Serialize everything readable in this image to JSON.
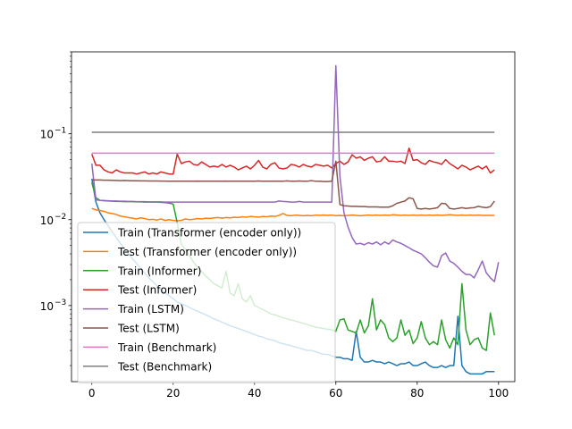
{
  "chart_data": {
    "type": "line",
    "title": "",
    "xlabel": "",
    "ylabel": "",
    "yscale": "log",
    "xlim": [
      -5,
      104
    ],
    "ylim": [
      0.00013,
      0.9
    ],
    "xticks": [
      0,
      20,
      40,
      60,
      80,
      100
    ],
    "yticks": [
      {
        "value": 0.001,
        "label": "10",
        "exp": "−3"
      },
      {
        "value": 0.01,
        "label": "10",
        "exp": "−2"
      },
      {
        "value": 0.1,
        "label": "10",
        "exp": "−1"
      }
    ],
    "grid": false,
    "legend_placement": "lower-left",
    "series": [
      {
        "name": "Train (Transformer (encoder only))",
        "color": "#1f77b4",
        "values": [
          0.03,
          0.016,
          0.012,
          0.01,
          0.0085,
          0.0072,
          0.0062,
          0.0053,
          0.0046,
          0.004,
          0.0035,
          0.0031,
          0.0027,
          0.0024,
          0.0021,
          0.0019,
          0.0017,
          0.0015,
          0.0014,
          0.0013,
          0.0012,
          0.0011,
          0.00105,
          0.001,
          0.00095,
          0.0009,
          0.00086,
          0.00082,
          0.00078,
          0.00074,
          0.0007,
          0.00067,
          0.00064,
          0.00061,
          0.00058,
          0.00056,
          0.00054,
          0.00052,
          0.0005,
          0.00048,
          0.00046,
          0.00044,
          0.00043,
          0.00041,
          0.0004,
          0.00039,
          0.00037,
          0.00036,
          0.00035,
          0.00034,
          0.00033,
          0.00032,
          0.00031,
          0.0003,
          0.0003,
          0.00029,
          0.00028,
          0.00027,
          0.00027,
          0.00026,
          0.00025,
          0.00025,
          0.00024,
          0.00024,
          0.00023,
          0.0005,
          0.00025,
          0.00022,
          0.00022,
          0.00023,
          0.00022,
          0.00022,
          0.00021,
          0.00022,
          0.00021,
          0.0002,
          0.00021,
          0.00021,
          0.00022,
          0.0002,
          0.0002,
          0.00021,
          0.00022,
          0.0002,
          0.00019,
          0.00019,
          0.0002,
          0.00019,
          0.0002,
          0.0002,
          0.00075,
          0.0002,
          0.00017,
          0.00016,
          0.00016,
          0.00016,
          0.00016,
          0.00017,
          0.00017,
          0.00017
        ]
      },
      {
        "name": "Test (Transformer (encoder only))",
        "color": "#ff7f0e",
        "values": [
          0.0135,
          0.013,
          0.0128,
          0.0125,
          0.012,
          0.0118,
          0.0115,
          0.011,
          0.0108,
          0.0106,
          0.0104,
          0.0102,
          0.0105,
          0.0103,
          0.01,
          0.0101,
          0.0099,
          0.0102,
          0.0098,
          0.01,
          0.0098,
          0.0097,
          0.0098,
          0.0102,
          0.01,
          0.0101,
          0.0103,
          0.0102,
          0.0104,
          0.0103,
          0.0105,
          0.0106,
          0.0104,
          0.0106,
          0.0105,
          0.0107,
          0.0106,
          0.0108,
          0.0107,
          0.0109,
          0.0108,
          0.0107,
          0.0109,
          0.0108,
          0.011,
          0.0109,
          0.0112,
          0.0118,
          0.0112,
          0.0111,
          0.0113,
          0.0112,
          0.0111,
          0.0112,
          0.0111,
          0.0113,
          0.0112,
          0.0113,
          0.0112,
          0.0113,
          0.0111,
          0.0112,
          0.0111,
          0.0112,
          0.0113,
          0.0112,
          0.0111,
          0.0112,
          0.0113,
          0.0112,
          0.0113,
          0.0112,
          0.0113,
          0.0112,
          0.0114,
          0.0113,
          0.0112,
          0.0113,
          0.0112,
          0.0113,
          0.0112,
          0.0113,
          0.0112,
          0.0113,
          0.0112,
          0.0113,
          0.0112,
          0.0113,
          0.0114,
          0.0113,
          0.0112,
          0.0113,
          0.0112,
          0.0113,
          0.0112,
          0.0113,
          0.0112,
          0.0112,
          0.0112,
          0.0112
        ]
      },
      {
        "name": "Train (Informer)",
        "color": "#2ca02c",
        "values": [
          0.027,
          0.018,
          0.0168,
          0.0166,
          0.0165,
          0.0164,
          0.0163,
          0.0163,
          0.0162,
          0.0162,
          0.0162,
          0.0161,
          0.0161,
          0.016,
          0.016,
          0.016,
          0.016,
          0.0159,
          0.0158,
          0.0156,
          0.0152,
          0.0092,
          0.0052,
          0.0045,
          0.0038,
          0.0032,
          0.0028,
          0.0025,
          0.0022,
          0.002,
          0.0018,
          0.0017,
          0.0016,
          0.0025,
          0.0014,
          0.0013,
          0.0018,
          0.0012,
          0.0011,
          0.0013,
          0.001,
          0.00095,
          0.0009,
          0.00085,
          0.0008,
          0.00078,
          0.00075,
          0.00072,
          0.0007,
          0.00068,
          0.00066,
          0.00064,
          0.00062,
          0.0006,
          0.00058,
          0.00056,
          0.00055,
          0.00054,
          0.00053,
          0.00052,
          0.0005,
          0.00068,
          0.0007,
          0.00052,
          0.0005,
          0.00048,
          0.00068,
          0.00048,
          0.00058,
          0.0012,
          0.00052,
          0.00068,
          0.0006,
          0.00042,
          0.00038,
          0.00042,
          0.00068,
          0.00045,
          0.00052,
          0.00036,
          0.00042,
          0.00065,
          0.00042,
          0.00035,
          0.00038,
          0.00035,
          0.00068,
          0.0004,
          0.00032,
          0.00042,
          0.00035,
          0.0018,
          0.00052,
          0.00035,
          0.0004,
          0.00042,
          0.00032,
          0.0003,
          0.00082,
          0.00045
        ]
      },
      {
        "name": "Test (Informer)",
        "color": "#d62728",
        "values": [
          0.058,
          0.043,
          0.043,
          0.038,
          0.036,
          0.035,
          0.038,
          0.036,
          0.035,
          0.035,
          0.035,
          0.034,
          0.035,
          0.036,
          0.034,
          0.035,
          0.034,
          0.036,
          0.035,
          0.034,
          0.034,
          0.058,
          0.045,
          0.047,
          0.048,
          0.044,
          0.043,
          0.047,
          0.044,
          0.041,
          0.042,
          0.041,
          0.044,
          0.041,
          0.043,
          0.041,
          0.038,
          0.04,
          0.042,
          0.039,
          0.043,
          0.049,
          0.041,
          0.039,
          0.044,
          0.046,
          0.04,
          0.039,
          0.04,
          0.044,
          0.043,
          0.041,
          0.044,
          0.042,
          0.041,
          0.044,
          0.043,
          0.042,
          0.043,
          0.04,
          0.045,
          0.048,
          0.044,
          0.047,
          0.057,
          0.052,
          0.054,
          0.049,
          0.052,
          0.054,
          0.047,
          0.048,
          0.054,
          0.048,
          0.048,
          0.047,
          0.048,
          0.045,
          0.068,
          0.049,
          0.05,
          0.046,
          0.044,
          0.049,
          0.047,
          0.046,
          0.044,
          0.05,
          0.045,
          0.042,
          0.039,
          0.043,
          0.041,
          0.038,
          0.04,
          0.042,
          0.039,
          0.042,
          0.035,
          0.038
        ]
      },
      {
        "name": "Train (LSTM)",
        "color": "#9467bd",
        "values": [
          0.045,
          0.017,
          0.0168,
          0.0167,
          0.0166,
          0.0165,
          0.0165,
          0.0164,
          0.0164,
          0.0163,
          0.0163,
          0.0162,
          0.0162,
          0.0162,
          0.0161,
          0.0161,
          0.0161,
          0.0161,
          0.016,
          0.016,
          0.016,
          0.016,
          0.016,
          0.016,
          0.016,
          0.016,
          0.016,
          0.016,
          0.016,
          0.016,
          0.016,
          0.016,
          0.016,
          0.016,
          0.016,
          0.016,
          0.016,
          0.016,
          0.016,
          0.016,
          0.016,
          0.016,
          0.016,
          0.016,
          0.016,
          0.016,
          0.0165,
          0.0163,
          0.0162,
          0.016,
          0.016,
          0.0163,
          0.016,
          0.016,
          0.016,
          0.016,
          0.016,
          0.016,
          0.016,
          0.016,
          0.62,
          0.032,
          0.012,
          0.0082,
          0.0062,
          0.0052,
          0.0053,
          0.0051,
          0.0054,
          0.0052,
          0.0055,
          0.0051,
          0.0055,
          0.0052,
          0.0058,
          0.0055,
          0.0053,
          0.005,
          0.0047,
          0.0044,
          0.0042,
          0.004,
          0.0036,
          0.0032,
          0.0029,
          0.0028,
          0.0038,
          0.0041,
          0.0033,
          0.0031,
          0.0028,
          0.0025,
          0.0023,
          0.0023,
          0.0021,
          0.0026,
          0.0033,
          0.0024,
          0.0021,
          0.0019,
          0.0032
        ]
      },
      {
        "name": "Test (LSTM)",
        "color": "#8c564b",
        "values": [
          0.029,
          0.029,
          0.029,
          0.0288,
          0.0288,
          0.0287,
          0.0286,
          0.0285,
          0.0286,
          0.0285,
          0.0284,
          0.0284,
          0.0283,
          0.0283,
          0.0282,
          0.0282,
          0.0282,
          0.0281,
          0.0281,
          0.028,
          0.028,
          0.028,
          0.028,
          0.028,
          0.028,
          0.028,
          0.0281,
          0.028,
          0.028,
          0.028,
          0.028,
          0.028,
          0.028,
          0.0281,
          0.028,
          0.028,
          0.028,
          0.028,
          0.028,
          0.028,
          0.028,
          0.0282,
          0.028,
          0.028,
          0.028,
          0.028,
          0.028,
          0.028,
          0.0283,
          0.028,
          0.028,
          0.0282,
          0.028,
          0.028,
          0.0285,
          0.028,
          0.028,
          0.0278,
          0.0278,
          0.028,
          0.048,
          0.015,
          0.0145,
          0.0144,
          0.0143,
          0.0143,
          0.0142,
          0.0142,
          0.0141,
          0.0141,
          0.0141,
          0.014,
          0.014,
          0.014,
          0.0145,
          0.0155,
          0.016,
          0.0165,
          0.018,
          0.0175,
          0.0135,
          0.0133,
          0.0135,
          0.0133,
          0.0135,
          0.0138,
          0.0155,
          0.0153,
          0.0135,
          0.0133,
          0.0135,
          0.0138,
          0.0135,
          0.0137,
          0.0138,
          0.0143,
          0.014,
          0.0138,
          0.0142,
          0.0165
        ]
      },
      {
        "name": "Train (Benchmark)",
        "color": "#e377c2",
        "values": [
          0.0595,
          0.0595,
          0.0595,
          0.0595,
          0.0595,
          0.0595,
          0.0595,
          0.0595,
          0.0595,
          0.0595,
          0.0595,
          0.0595,
          0.0595,
          0.0595,
          0.0595,
          0.0595,
          0.0595,
          0.0595,
          0.0595,
          0.0595,
          0.0595,
          0.0595,
          0.0595,
          0.0595,
          0.0595,
          0.0595,
          0.0595,
          0.0595,
          0.0595,
          0.0595,
          0.0595,
          0.0595,
          0.0595,
          0.0595,
          0.0595,
          0.0595,
          0.0595,
          0.0595,
          0.0595,
          0.0595,
          0.0595,
          0.0595,
          0.0595,
          0.0595,
          0.0595,
          0.0595,
          0.0595,
          0.0595,
          0.0595,
          0.0595,
          0.0595,
          0.0595,
          0.0595,
          0.0595,
          0.0595,
          0.0595,
          0.0595,
          0.0595,
          0.0595,
          0.0595,
          0.0595,
          0.0595,
          0.0595,
          0.0595,
          0.0595,
          0.0595,
          0.0595,
          0.0595,
          0.0595,
          0.0595,
          0.0595,
          0.0595,
          0.0595,
          0.0595,
          0.0595,
          0.0595,
          0.0595,
          0.0595,
          0.0595,
          0.0595,
          0.0595,
          0.0595,
          0.0595,
          0.0595,
          0.0595,
          0.0595,
          0.0595,
          0.0595,
          0.0595,
          0.0595,
          0.0595,
          0.0595,
          0.0595,
          0.0595,
          0.0595,
          0.0595,
          0.0595,
          0.0595,
          0.0595,
          0.0595
        ]
      },
      {
        "name": "Test (Benchmark)",
        "color": "#7f7f7f",
        "values": [
          0.104,
          0.104,
          0.104,
          0.104,
          0.104,
          0.104,
          0.104,
          0.104,
          0.104,
          0.104,
          0.104,
          0.104,
          0.104,
          0.104,
          0.104,
          0.104,
          0.104,
          0.104,
          0.104,
          0.104,
          0.104,
          0.104,
          0.104,
          0.104,
          0.104,
          0.104,
          0.104,
          0.104,
          0.104,
          0.104,
          0.104,
          0.104,
          0.104,
          0.104,
          0.104,
          0.104,
          0.104,
          0.104,
          0.104,
          0.104,
          0.104,
          0.104,
          0.104,
          0.104,
          0.104,
          0.104,
          0.104,
          0.104,
          0.104,
          0.104,
          0.104,
          0.104,
          0.104,
          0.104,
          0.104,
          0.104,
          0.104,
          0.104,
          0.104,
          0.104,
          0.104,
          0.104,
          0.104,
          0.104,
          0.104,
          0.104,
          0.104,
          0.104,
          0.104,
          0.104,
          0.104,
          0.104,
          0.104,
          0.104,
          0.104,
          0.104,
          0.104,
          0.104,
          0.104,
          0.104,
          0.104,
          0.104,
          0.104,
          0.104,
          0.104,
          0.104,
          0.104,
          0.104,
          0.104,
          0.104,
          0.104,
          0.104,
          0.104,
          0.104,
          0.104,
          0.104,
          0.104,
          0.104,
          0.104,
          0.104
        ]
      }
    ]
  }
}
